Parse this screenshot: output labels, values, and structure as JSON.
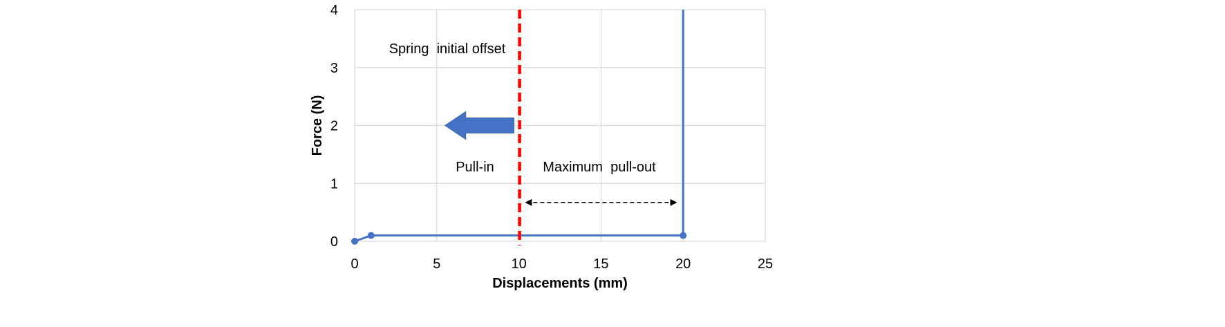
{
  "chart_data": {
    "type": "line",
    "title": "",
    "xlabel": "Displacements (mm)",
    "ylabel": "Force (N)",
    "xlim": [
      0,
      25
    ],
    "ylim": [
      0,
      4
    ],
    "xticks": [
      0,
      5,
      10,
      15,
      20,
      25
    ],
    "yticks": [
      0,
      1,
      2,
      3,
      4
    ],
    "grid": true,
    "legend": "none",
    "colors": {
      "series": "#4472c4",
      "offset_line": "#ff0000",
      "arrow": "#4472c4",
      "grid": "#d9d9d9"
    },
    "series": [
      {
        "x": [
          0,
          1,
          20,
          20
        ],
        "y": [
          0,
          0.1,
          0.1,
          4
        ],
        "markers": [
          true,
          true,
          true,
          false
        ]
      }
    ],
    "vertical_line": {
      "x": 10,
      "style": "dashed"
    },
    "annotations": {
      "offset_label": "Spring  initial offset",
      "pull_in_label": "Pull-in",
      "pull_out_label": "Maximum  pull-out",
      "pull_in_arrow": {
        "from_x": 9.7,
        "to_x": 5.5,
        "y": 2.0
      },
      "pull_out_arrow": {
        "from_x": 10.2,
        "to_x": 19.8,
        "y": 0.67
      }
    }
  }
}
